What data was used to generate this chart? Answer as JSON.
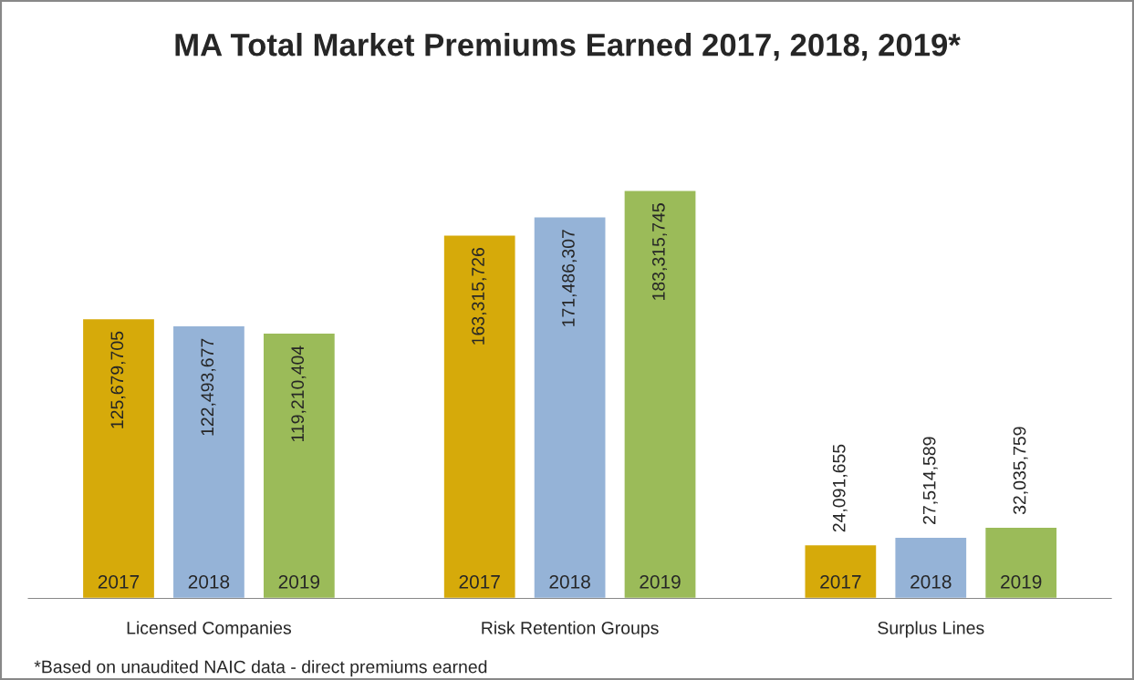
{
  "chart_data": {
    "type": "bar",
    "title": "MA Total Market Premiums Earned 2017, 2018, 2019*",
    "categories": [
      "Licensed Companies",
      "Risk Retention Groups",
      "Surplus Lines"
    ],
    "series": [
      {
        "name": "2017",
        "color": "#d6aa0a",
        "values": [
          125679705,
          163315726,
          24091655
        ],
        "value_labels": [
          "125,679,705",
          "163,315,726",
          "24,091,655"
        ]
      },
      {
        "name": "2018",
        "color": "#95b3d7",
        "values": [
          122493677,
          171486307,
          27514589
        ],
        "value_labels": [
          "122,493,677",
          "171,486,307",
          "27,514,589"
        ]
      },
      {
        "name": "2019",
        "color": "#9bbb59",
        "values": [
          119210404,
          183315745,
          32035759
        ],
        "value_labels": [
          "119,210,404",
          "183,315,745",
          "32,035,759"
        ]
      }
    ],
    "annotations": [
      "*Based on unaudited NAIC data - direct premiums earned"
    ],
    "grid": false,
    "legend": false
  }
}
